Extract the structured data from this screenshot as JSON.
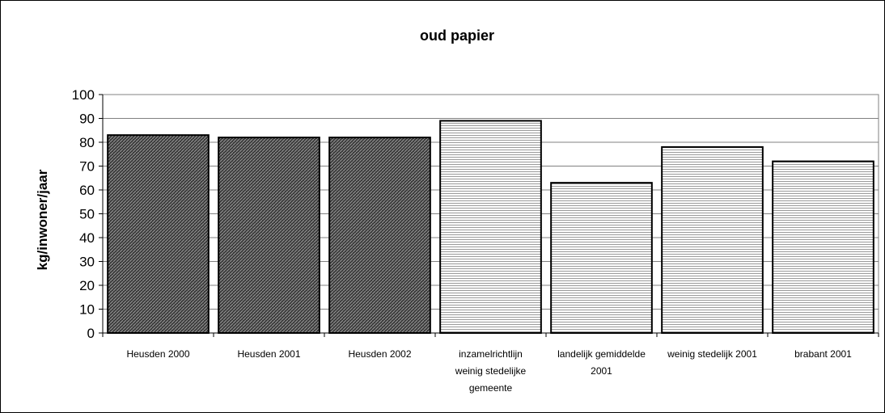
{
  "chart_data": {
    "type": "bar",
    "title": "oud papier",
    "ylabel": "kg/inwoner/jaar",
    "xlabel": "",
    "ylim": [
      0,
      100
    ],
    "yticks": [
      0,
      10,
      20,
      30,
      40,
      50,
      60,
      70,
      80,
      90,
      100
    ],
    "grid": true,
    "categories": [
      [
        "Heusden 2000"
      ],
      [
        "Heusden 2001"
      ],
      [
        "Heusden 2002"
      ],
      [
        "inzamelrichtlijn",
        "weinig stedelijke",
        "gemeente"
      ],
      [
        "landelijk gemiddelde",
        "2001"
      ],
      [
        "weinig stedelijk 2001"
      ],
      [
        "brabant 2001"
      ]
    ],
    "values": [
      83,
      82,
      82,
      89,
      63,
      78,
      72
    ],
    "bar_fills": [
      "dark",
      "dark",
      "dark",
      "light",
      "light",
      "light",
      "light"
    ]
  }
}
